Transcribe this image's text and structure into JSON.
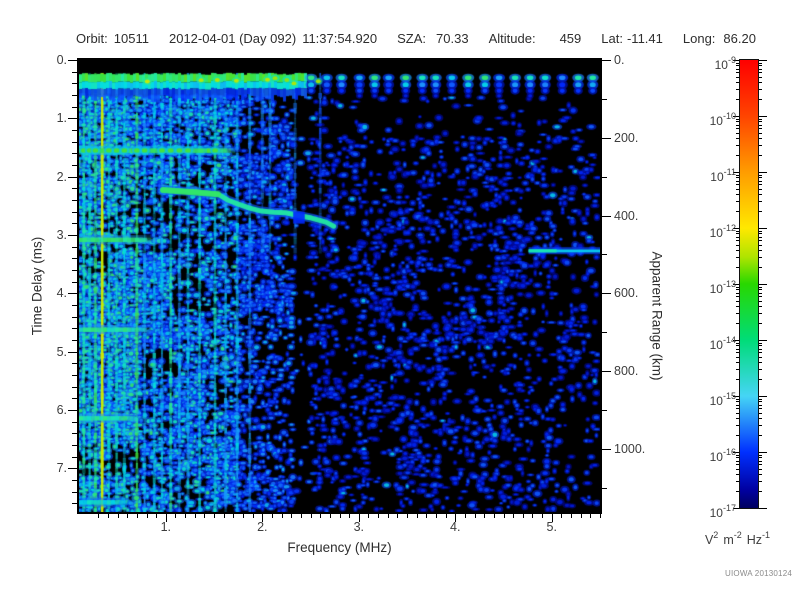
{
  "header": {
    "items": [
      {
        "label": "Orbit:",
        "value": "10511"
      },
      {
        "label": "2012-04-01 (Day 092)",
        "value": "11:37:54.920"
      },
      {
        "label": "SZA:",
        "value": "70.33"
      },
      {
        "label": "Altitude:",
        "value": "459"
      },
      {
        "label": "Lat:",
        "value": "-11.41"
      },
      {
        "label": "Long:",
        "value": "86.20"
      }
    ]
  },
  "watermark": "UIOWA 20130124",
  "chart_data": {
    "type": "heatmap",
    "description": "MARSIS-style radar sounder ionogram: received spectral density vs sounding frequency and echo time delay",
    "background_color": "#000000",
    "x_axis": {
      "label": "Frequency (MHz)",
      "min": 0.1,
      "max": 5.5,
      "major_ticks": [
        1,
        2,
        3,
        4,
        5
      ],
      "tick_labels": [
        "1.",
        "2.",
        "3.",
        "4.",
        "5."
      ],
      "minor_tick_step": 0.1
    },
    "y_axis": {
      "label": "Time Delay (ms)",
      "min": 0,
      "max": 7.75,
      "direction": "down",
      "major_ticks": [
        0,
        1,
        2,
        3,
        4,
        5,
        6,
        7
      ],
      "tick_labels": [
        "0.",
        "1.",
        "2.",
        "3.",
        "4.",
        "5.",
        "6.",
        "7."
      ],
      "minor_tick_step": 0.2
    },
    "y2_axis": {
      "label": "Apparent Range (km)",
      "min": 0,
      "max": 1162.5,
      "major_ticks": [
        0,
        200,
        400,
        600,
        800,
        1000
      ],
      "tick_labels": [
        "0.",
        "200.",
        "400.",
        "600.",
        "800.",
        "1000."
      ],
      "minor_tick_step": 100
    },
    "colorbar": {
      "scale": "log",
      "max": 1e-09,
      "min": 1e-17,
      "label_base": "10",
      "exponents": [
        "-9",
        "-10",
        "-11",
        "-12",
        "-13",
        "-14",
        "-15",
        "-16",
        "-17"
      ],
      "units_parts": [
        {
          "base": "V",
          "exp": "2"
        },
        {
          "base": "m",
          "exp": "-2"
        },
        {
          "base": "Hz",
          "exp": "-1"
        }
      ],
      "gradient_stops": [
        [
          "#ff0000",
          0
        ],
        [
          "#ff2000",
          6
        ],
        [
          "#ff4400",
          12.5
        ],
        [
          "#ff9c00",
          25
        ],
        [
          "#ffe800",
          37.5
        ],
        [
          "#aee400",
          44
        ],
        [
          "#28d800",
          50
        ],
        [
          "#00dc78",
          62.5
        ],
        [
          "#45d5f5",
          75
        ],
        [
          "#0030ff",
          87.5
        ],
        [
          "#0000a0",
          96
        ],
        [
          "#000060",
          100
        ]
      ]
    },
    "features": {
      "first_echo_band": {
        "delay_range_ms": [
          0.22,
          0.62
        ],
        "continuous_below_mhz": 2.45,
        "blob_spacing_mhz": 0.162
      },
      "plasma_harmonics": [
        {
          "mhz": 0.15,
          "strength": 0.55,
          "extent": "full"
        },
        {
          "mhz": 0.21,
          "strength": 0.5,
          "extent": "full"
        },
        {
          "mhz": 0.27,
          "strength": 0.6,
          "extent": "full"
        },
        {
          "mhz": 0.34,
          "strength": 0.8,
          "extent": "full"
        },
        {
          "mhz": 0.41,
          "strength": 0.5,
          "extent": "full"
        },
        {
          "mhz": 0.49,
          "strength": 0.52,
          "extent": "full"
        },
        {
          "mhz": 0.57,
          "strength": 0.5,
          "extent": "full"
        },
        {
          "mhz": 0.7,
          "strength": 0.62,
          "extent": "full"
        },
        {
          "mhz": 0.78,
          "strength": 0.46,
          "extent": "full"
        },
        {
          "mhz": 0.88,
          "strength": 0.48,
          "extent": "full"
        },
        {
          "mhz": 0.96,
          "strength": 0.46,
          "extent": "full"
        },
        {
          "mhz": 1.05,
          "strength": 0.55,
          "extent": "full"
        },
        {
          "mhz": 1.14,
          "strength": 0.44,
          "extent": "full"
        },
        {
          "mhz": 1.23,
          "strength": 0.46,
          "extent": "full"
        },
        {
          "mhz": 1.35,
          "strength": 0.5,
          "extent": "full"
        },
        {
          "mhz": 1.51,
          "strength": 0.52,
          "extent": "full"
        },
        {
          "mhz": 1.62,
          "strength": 0.44,
          "extent": "full"
        },
        {
          "mhz": 1.74,
          "strength": 0.46,
          "extent": "full"
        },
        {
          "mhz": 1.87,
          "strength": 0.42,
          "extent": "full"
        },
        {
          "mhz": 2.0,
          "strength": 0.4,
          "extent": "upper"
        },
        {
          "mhz": 2.08,
          "strength": 0.44,
          "extent": "upper"
        },
        {
          "mhz": 2.34,
          "strength": 0.42,
          "extent": "upper"
        },
        {
          "mhz": 2.6,
          "strength": 0.36,
          "extent": "upper"
        }
      ],
      "cyclotron_echoes": {
        "delays_ms": [
          1.55,
          3.08,
          4.62,
          6.14,
          7.58
        ],
        "max_freq_mhz": [
          1.74,
          0.9,
          0.85,
          0.79,
          0.68
        ],
        "strengths": [
          0.62,
          0.58,
          0.56,
          0.55,
          0.5
        ]
      },
      "ionosphere_trace_points_mhz_ms": [
        [
          0.97,
          2.23
        ],
        [
          1.3,
          2.26
        ],
        [
          1.54,
          2.3
        ],
        [
          1.64,
          2.4
        ],
        [
          1.75,
          2.47
        ],
        [
          1.87,
          2.54
        ],
        [
          1.99,
          2.59
        ],
        [
          2.12,
          2.61
        ],
        [
          2.24,
          2.62
        ],
        [
          2.39,
          2.67
        ],
        [
          2.51,
          2.71
        ],
        [
          2.66,
          2.78
        ],
        [
          2.74,
          2.85
        ]
      ],
      "surface_line": {
        "delay_ms": 3.27,
        "freq_range_mhz": [
          4.76,
          5.5
        ]
      },
      "noise_dark_columns_mhz": [
        [
          2.33,
          2.5
        ],
        [
          2.78,
          2.96
        ]
      ]
    }
  }
}
